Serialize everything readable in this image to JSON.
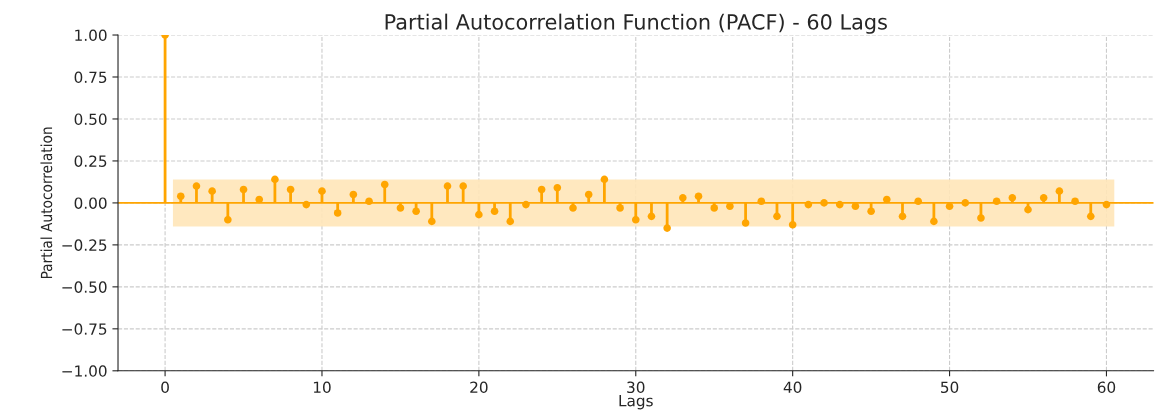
{
  "chart_data": {
    "type": "lollipop",
    "title": "Partial Autocorrelation Function (PACF) - 60 Lags",
    "xlabel": "Lags",
    "ylabel": "Partial Autocorrelation",
    "x": [
      0,
      1,
      2,
      3,
      4,
      5,
      6,
      7,
      8,
      9,
      10,
      11,
      12,
      13,
      14,
      15,
      16,
      17,
      18,
      19,
      20,
      21,
      22,
      23,
      24,
      25,
      26,
      27,
      28,
      29,
      30,
      31,
      32,
      33,
      34,
      35,
      36,
      37,
      38,
      39,
      40,
      41,
      42,
      43,
      44,
      45,
      46,
      47,
      48,
      49,
      50,
      51,
      52,
      53,
      54,
      55,
      56,
      57,
      58,
      59,
      60
    ],
    "series": [
      {
        "color": "#ffa500",
        "values": [
          1.0,
          0.04,
          0.1,
          0.07,
          -0.1,
          0.08,
          0.02,
          0.14,
          0.08,
          -0.01,
          0.07,
          -0.06,
          0.05,
          0.01,
          0.11,
          -0.03,
          -0.05,
          -0.11,
          0.1,
          0.1,
          -0.07,
          -0.05,
          -0.11,
          -0.01,
          0.08,
          0.09,
          -0.03,
          0.05,
          0.14,
          -0.03,
          -0.1,
          -0.08,
          -0.15,
          0.03,
          0.04,
          -0.03,
          -0.02,
          -0.12,
          0.01,
          -0.08,
          -0.13,
          -0.01,
          0.0,
          -0.01,
          -0.02,
          -0.05,
          0.02,
          -0.08,
          0.01,
          -0.11,
          -0.02,
          0.0,
          -0.09,
          0.01,
          0.03,
          -0.04,
          0.03,
          0.07,
          0.01,
          -0.08,
          -0.01
        ]
      }
    ],
    "bands": [
      {
        "axis": "y",
        "from": -0.14,
        "to": 0.14,
        "color": "#ffe6b8"
      }
    ],
    "ref_lines": [
      {
        "axis": "y",
        "value": 0,
        "color": "#ffa500"
      }
    ],
    "xlim": [
      -3,
      63
    ],
    "xticks": [
      0,
      10,
      20,
      30,
      40,
      50,
      60
    ],
    "ylim": [
      -1.0,
      1.0
    ],
    "yticks": [
      {
        "value": -1.0,
        "label": "−1.00"
      },
      {
        "value": -0.75,
        "label": "−0.75"
      },
      {
        "value": -0.5,
        "label": "−0.50"
      },
      {
        "value": -0.25,
        "label": "−0.25"
      },
      {
        "value": 0.0,
        "label": "0.00"
      },
      {
        "value": 0.25,
        "label": "0.25"
      },
      {
        "value": 0.5,
        "label": "0.50"
      },
      {
        "value": 0.75,
        "label": "0.75"
      },
      {
        "value": 1.0,
        "label": "1.00"
      }
    ],
    "grid": true,
    "marker": "circle"
  }
}
